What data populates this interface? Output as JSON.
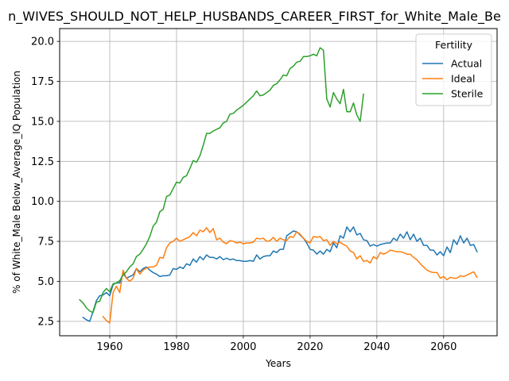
{
  "chart_data": {
    "type": "line",
    "title": "n_WIVES_SHOULD_NOT_HELP_HUSBANDS_CAREER_FIRST_for_White_Male_Be",
    "xlabel": "Years",
    "ylabel": "% of White_Male Below_Average_IQ Population",
    "xlim": [
      1945,
      2076
    ],
    "ylim": [
      1.6,
      20.8
    ],
    "xticks": [
      1960,
      1980,
      2000,
      2020,
      2040,
      2060
    ],
    "yticks": [
      2.5,
      5.0,
      7.5,
      10.0,
      12.5,
      15.0,
      17.5,
      20.0
    ],
    "ytick_labels": [
      "2.5",
      "5.0",
      "7.5",
      "10.0",
      "12.5",
      "15.0",
      "17.5",
      "20.0"
    ],
    "grid": true,
    "legend_title": "Fertility",
    "legend_position": "top-right",
    "series": [
      {
        "name": "Actual",
        "color": "#1f77b4",
        "points": [
          [
            1952,
            2.75
          ],
          [
            1953,
            2.6
          ],
          [
            1954,
            2.5
          ],
          [
            1955,
            3.1
          ],
          [
            1956,
            3.8
          ],
          [
            1957,
            4.1
          ],
          [
            1958,
            4.15
          ],
          [
            1959,
            4.3
          ],
          [
            1960,
            4.1
          ],
          [
            1961,
            4.8
          ],
          [
            1962,
            4.9
          ],
          [
            1963,
            4.9
          ],
          [
            1964,
            5.5
          ],
          [
            1965,
            5.2
          ],
          [
            1966,
            5.3
          ],
          [
            1967,
            5.4
          ],
          [
            1968,
            5.8
          ],
          [
            1969,
            5.6
          ],
          [
            1970,
            5.8
          ],
          [
            1971,
            5.9
          ],
          [
            1972,
            5.7
          ],
          [
            1973,
            5.55
          ],
          [
            1974,
            5.45
          ],
          [
            1975,
            5.3
          ],
          [
            1976,
            5.35
          ],
          [
            1977,
            5.35
          ],
          [
            1978,
            5.4
          ],
          [
            1979,
            5.8
          ],
          [
            1980,
            5.75
          ],
          [
            1981,
            5.9
          ],
          [
            1982,
            5.8
          ],
          [
            1983,
            6.1
          ],
          [
            1984,
            6.0
          ],
          [
            1985,
            6.4
          ],
          [
            1986,
            6.2
          ],
          [
            1987,
            6.55
          ],
          [
            1988,
            6.35
          ],
          [
            1989,
            6.65
          ],
          [
            1990,
            6.5
          ],
          [
            1991,
            6.5
          ],
          [
            1992,
            6.4
          ],
          [
            1993,
            6.55
          ],
          [
            1994,
            6.35
          ],
          [
            1995,
            6.45
          ],
          [
            1996,
            6.35
          ],
          [
            1997,
            6.4
          ],
          [
            1998,
            6.3
          ],
          [
            1999,
            6.3
          ],
          [
            2000,
            6.25
          ],
          [
            2001,
            6.25
          ],
          [
            2002,
            6.3
          ],
          [
            2003,
            6.25
          ],
          [
            2004,
            6.65
          ],
          [
            2005,
            6.4
          ],
          [
            2006,
            6.55
          ],
          [
            2007,
            6.6
          ],
          [
            2008,
            6.6
          ],
          [
            2009,
            6.9
          ],
          [
            2010,
            6.8
          ],
          [
            2011,
            7.0
          ],
          [
            2012,
            7.0
          ],
          [
            2013,
            7.85
          ],
          [
            2014,
            8.0
          ],
          [
            2015,
            8.15
          ],
          [
            2016,
            8.1
          ],
          [
            2017,
            7.9
          ],
          [
            2018,
            7.7
          ],
          [
            2019,
            7.4
          ],
          [
            2020,
            7.0
          ],
          [
            2021,
            6.95
          ],
          [
            2022,
            6.7
          ],
          [
            2023,
            6.9
          ],
          [
            2024,
            6.7
          ],
          [
            2025,
            7.0
          ],
          [
            2026,
            6.85
          ],
          [
            2027,
            7.4
          ],
          [
            2028,
            7.1
          ],
          [
            2029,
            7.85
          ],
          [
            2030,
            7.7
          ],
          [
            2031,
            8.4
          ],
          [
            2032,
            8.1
          ],
          [
            2033,
            8.4
          ],
          [
            2034,
            7.9
          ],
          [
            2035,
            8.0
          ],
          [
            2036,
            7.6
          ],
          [
            2037,
            7.55
          ],
          [
            2038,
            7.2
          ],
          [
            2039,
            7.3
          ],
          [
            2040,
            7.2
          ],
          [
            2041,
            7.3
          ],
          [
            2042,
            7.35
          ],
          [
            2043,
            7.4
          ],
          [
            2044,
            7.4
          ],
          [
            2045,
            7.7
          ],
          [
            2046,
            7.55
          ],
          [
            2047,
            7.95
          ],
          [
            2048,
            7.7
          ],
          [
            2049,
            8.1
          ],
          [
            2050,
            7.6
          ],
          [
            2051,
            7.95
          ],
          [
            2052,
            7.5
          ],
          [
            2053,
            7.7
          ],
          [
            2054,
            7.25
          ],
          [
            2055,
            7.25
          ],
          [
            2056,
            6.95
          ],
          [
            2057,
            6.95
          ],
          [
            2058,
            6.65
          ],
          [
            2059,
            6.85
          ],
          [
            2060,
            6.6
          ],
          [
            2061,
            7.15
          ],
          [
            2062,
            6.8
          ],
          [
            2063,
            7.6
          ],
          [
            2064,
            7.3
          ],
          [
            2065,
            7.85
          ],
          [
            2066,
            7.4
          ],
          [
            2067,
            7.7
          ],
          [
            2068,
            7.25
          ],
          [
            2069,
            7.3
          ],
          [
            2070,
            6.85
          ]
        ]
      },
      {
        "name": "Ideal",
        "color": "#ff7f0e",
        "points": [
          [
            1958,
            2.8
          ],
          [
            1959,
            2.55
          ],
          [
            1960,
            2.4
          ],
          [
            1961,
            4.3
          ],
          [
            1962,
            4.7
          ],
          [
            1963,
            4.3
          ],
          [
            1964,
            5.7
          ],
          [
            1965,
            5.2
          ],
          [
            1966,
            5.0
          ],
          [
            1967,
            5.2
          ],
          [
            1968,
            5.8
          ],
          [
            1969,
            5.45
          ],
          [
            1970,
            5.7
          ],
          [
            1971,
            5.85
          ],
          [
            1972,
            5.9
          ],
          [
            1973,
            5.9
          ],
          [
            1974,
            6.0
          ],
          [
            1975,
            6.5
          ],
          [
            1976,
            6.45
          ],
          [
            1977,
            7.1
          ],
          [
            1978,
            7.4
          ],
          [
            1979,
            7.5
          ],
          [
            1980,
            7.7
          ],
          [
            1981,
            7.5
          ],
          [
            1982,
            7.6
          ],
          [
            1983,
            7.7
          ],
          [
            1984,
            7.8
          ],
          [
            1985,
            8.05
          ],
          [
            1986,
            7.85
          ],
          [
            1987,
            8.2
          ],
          [
            1988,
            8.1
          ],
          [
            1989,
            8.35
          ],
          [
            1990,
            8.05
          ],
          [
            1991,
            8.3
          ],
          [
            1992,
            7.6
          ],
          [
            1993,
            7.7
          ],
          [
            1994,
            7.45
          ],
          [
            1995,
            7.35
          ],
          [
            1996,
            7.55
          ],
          [
            1997,
            7.5
          ],
          [
            1998,
            7.4
          ],
          [
            1999,
            7.45
          ],
          [
            2000,
            7.35
          ],
          [
            2001,
            7.4
          ],
          [
            2002,
            7.4
          ],
          [
            2003,
            7.45
          ],
          [
            2004,
            7.7
          ],
          [
            2005,
            7.65
          ],
          [
            2006,
            7.7
          ],
          [
            2007,
            7.5
          ],
          [
            2008,
            7.55
          ],
          [
            2009,
            7.75
          ],
          [
            2010,
            7.5
          ],
          [
            2011,
            7.7
          ],
          [
            2012,
            7.6
          ],
          [
            2013,
            7.55
          ],
          [
            2014,
            7.8
          ],
          [
            2015,
            7.75
          ],
          [
            2016,
            8.1
          ],
          [
            2017,
            7.95
          ],
          [
            2018,
            7.7
          ],
          [
            2019,
            7.5
          ],
          [
            2020,
            7.4
          ],
          [
            2021,
            7.8
          ],
          [
            2022,
            7.75
          ],
          [
            2023,
            7.8
          ],
          [
            2024,
            7.55
          ],
          [
            2025,
            7.6
          ],
          [
            2026,
            7.25
          ],
          [
            2027,
            7.5
          ],
          [
            2028,
            7.35
          ],
          [
            2029,
            7.45
          ],
          [
            2030,
            7.3
          ],
          [
            2031,
            7.2
          ],
          [
            2032,
            6.9
          ],
          [
            2033,
            6.8
          ],
          [
            2034,
            6.4
          ],
          [
            2035,
            6.6
          ],
          [
            2036,
            6.25
          ],
          [
            2037,
            6.3
          ],
          [
            2038,
            6.15
          ],
          [
            2039,
            6.55
          ],
          [
            2040,
            6.4
          ],
          [
            2041,
            6.8
          ],
          [
            2042,
            6.7
          ],
          [
            2043,
            6.8
          ],
          [
            2044,
            6.95
          ],
          [
            2045,
            6.9
          ],
          [
            2046,
            6.85
          ],
          [
            2047,
            6.85
          ],
          [
            2048,
            6.8
          ],
          [
            2049,
            6.7
          ],
          [
            2050,
            6.7
          ],
          [
            2051,
            6.5
          ],
          [
            2052,
            6.35
          ],
          [
            2053,
            6.1
          ],
          [
            2054,
            5.9
          ],
          [
            2055,
            5.7
          ],
          [
            2056,
            5.6
          ],
          [
            2057,
            5.55
          ],
          [
            2058,
            5.55
          ],
          [
            2059,
            5.2
          ],
          [
            2060,
            5.3
          ],
          [
            2061,
            5.1
          ],
          [
            2062,
            5.25
          ],
          [
            2063,
            5.2
          ],
          [
            2064,
            5.2
          ],
          [
            2065,
            5.35
          ],
          [
            2066,
            5.3
          ],
          [
            2067,
            5.4
          ],
          [
            2068,
            5.5
          ],
          [
            2069,
            5.6
          ],
          [
            2070,
            5.25
          ]
        ]
      },
      {
        "name": "Sterile",
        "color": "#2ca02c",
        "points": [
          [
            1951,
            3.85
          ],
          [
            1952,
            3.65
          ],
          [
            1953,
            3.35
          ],
          [
            1954,
            3.15
          ],
          [
            1955,
            3.05
          ],
          [
            1956,
            3.7
          ],
          [
            1957,
            3.75
          ],
          [
            1958,
            4.3
          ],
          [
            1959,
            4.55
          ],
          [
            1960,
            4.35
          ],
          [
            1961,
            4.85
          ],
          [
            1962,
            4.9
          ],
          [
            1963,
            5.05
          ],
          [
            1964,
            5.4
          ],
          [
            1965,
            5.6
          ],
          [
            1966,
            5.9
          ],
          [
            1967,
            6.1
          ],
          [
            1968,
            6.55
          ],
          [
            1969,
            6.7
          ],
          [
            1970,
            7.0
          ],
          [
            1971,
            7.35
          ],
          [
            1972,
            7.8
          ],
          [
            1973,
            8.45
          ],
          [
            1974,
            8.7
          ],
          [
            1975,
            9.35
          ],
          [
            1976,
            9.5
          ],
          [
            1977,
            10.3
          ],
          [
            1978,
            10.4
          ],
          [
            1979,
            10.8
          ],
          [
            1980,
            11.2
          ],
          [
            1981,
            11.15
          ],
          [
            1982,
            11.5
          ],
          [
            1983,
            11.6
          ],
          [
            1984,
            12.05
          ],
          [
            1985,
            12.55
          ],
          [
            1986,
            12.45
          ],
          [
            1987,
            12.85
          ],
          [
            1988,
            13.5
          ],
          [
            1989,
            14.25
          ],
          [
            1990,
            14.25
          ],
          [
            1991,
            14.4
          ],
          [
            1992,
            14.5
          ],
          [
            1993,
            14.6
          ],
          [
            1994,
            14.9
          ],
          [
            1995,
            15.0
          ],
          [
            1996,
            15.45
          ],
          [
            1997,
            15.5
          ],
          [
            1998,
            15.7
          ],
          [
            1999,
            15.85
          ],
          [
            2000,
            16.0
          ],
          [
            2001,
            16.2
          ],
          [
            2002,
            16.4
          ],
          [
            2003,
            16.6
          ],
          [
            2004,
            16.9
          ],
          [
            2005,
            16.6
          ],
          [
            2006,
            16.65
          ],
          [
            2007,
            16.8
          ],
          [
            2008,
            16.95
          ],
          [
            2009,
            17.25
          ],
          [
            2010,
            17.35
          ],
          [
            2011,
            17.6
          ],
          [
            2012,
            17.9
          ],
          [
            2013,
            17.85
          ],
          [
            2014,
            18.3
          ],
          [
            2015,
            18.45
          ],
          [
            2016,
            18.7
          ],
          [
            2017,
            18.75
          ],
          [
            2018,
            19.05
          ],
          [
            2019,
            19.05
          ],
          [
            2020,
            19.1
          ],
          [
            2021,
            19.2
          ],
          [
            2022,
            19.1
          ],
          [
            2023,
            19.6
          ],
          [
            2024,
            19.45
          ],
          [
            2025,
            16.4
          ],
          [
            2026,
            15.9
          ],
          [
            2027,
            16.8
          ],
          [
            2028,
            16.4
          ],
          [
            2029,
            16.1
          ],
          [
            2030,
            17.0
          ],
          [
            2031,
            15.6
          ],
          [
            2032,
            15.6
          ],
          [
            2033,
            16.15
          ],
          [
            2034,
            15.4
          ],
          [
            2035,
            15.0
          ],
          [
            2036,
            16.7
          ]
        ]
      }
    ]
  }
}
